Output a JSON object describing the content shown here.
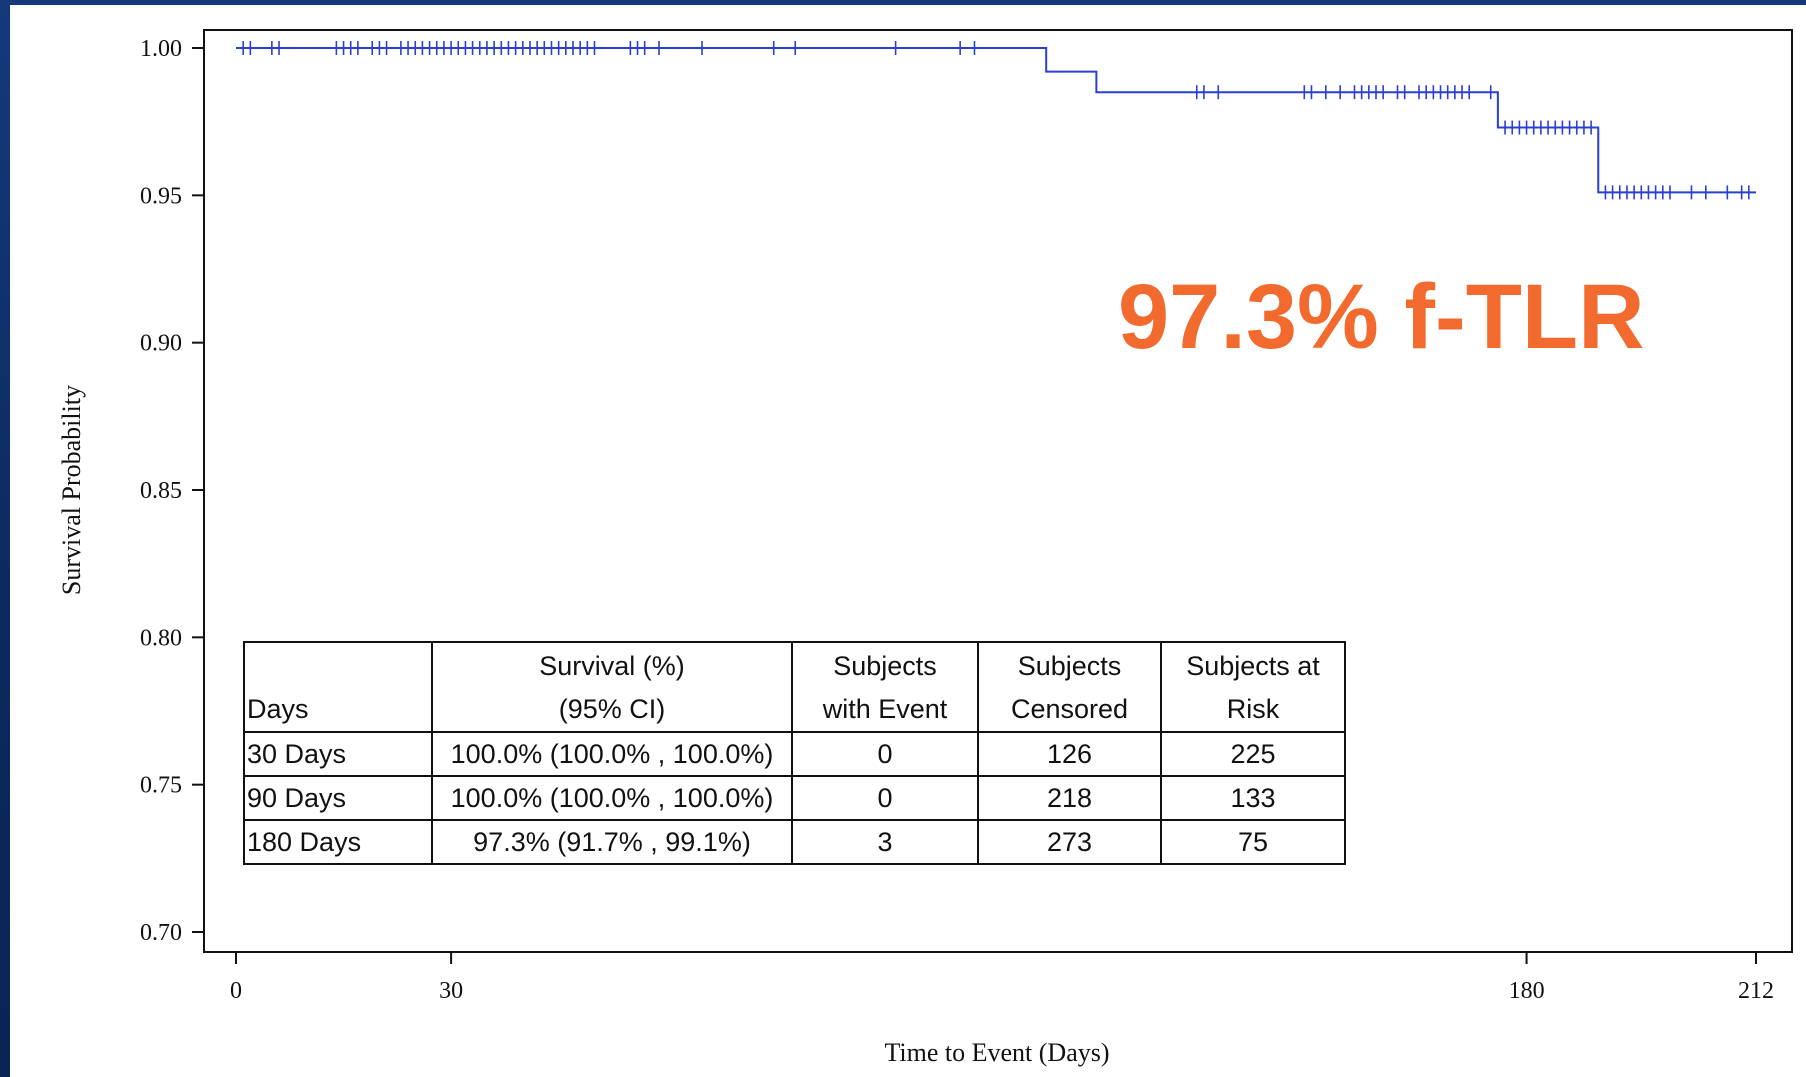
{
  "chart_data": {
    "type": "line",
    "subtype": "kaplan-meier",
    "title": "",
    "xlabel": "Time to Event (Days)",
    "ylabel": "Survival Probability",
    "xlim": [
      0,
      212
    ],
    "ylim": [
      0.7,
      1.0
    ],
    "x_ticks": [
      0,
      30,
      180,
      212
    ],
    "y_ticks": [
      "0.70",
      "0.75",
      "0.80",
      "0.85",
      "0.90",
      "0.95",
      "1.00"
    ],
    "series": [
      {
        "color": "#2a3fd6",
        "steps": [
          [
            0,
            1.0
          ],
          [
            113,
            0.992
          ],
          [
            120,
            0.985
          ],
          [
            176,
            0.973
          ],
          [
            190,
            0.951
          ],
          [
            212,
            0.951
          ]
        ],
        "censored": [
          {
            "x": 1,
            "y": 1.0
          },
          {
            "x": 2,
            "y": 1.0
          },
          {
            "x": 5,
            "y": 1.0
          },
          {
            "x": 6,
            "y": 1.0
          },
          {
            "x": 14,
            "y": 1.0
          },
          {
            "x": 15,
            "y": 1.0
          },
          {
            "x": 16,
            "y": 1.0
          },
          {
            "x": 17,
            "y": 1.0
          },
          {
            "x": 19,
            "y": 1.0
          },
          {
            "x": 20,
            "y": 1.0
          },
          {
            "x": 21,
            "y": 1.0
          },
          {
            "x": 23,
            "y": 1.0
          },
          {
            "x": 24,
            "y": 1.0
          },
          {
            "x": 25,
            "y": 1.0
          },
          {
            "x": 26,
            "y": 1.0
          },
          {
            "x": 27,
            "y": 1.0
          },
          {
            "x": 28,
            "y": 1.0
          },
          {
            "x": 29,
            "y": 1.0
          },
          {
            "x": 30,
            "y": 1.0
          },
          {
            "x": 31,
            "y": 1.0
          },
          {
            "x": 32,
            "y": 1.0
          },
          {
            "x": 33,
            "y": 1.0
          },
          {
            "x": 34,
            "y": 1.0
          },
          {
            "x": 35,
            "y": 1.0
          },
          {
            "x": 36,
            "y": 1.0
          },
          {
            "x": 37,
            "y": 1.0
          },
          {
            "x": 38,
            "y": 1.0
          },
          {
            "x": 39,
            "y": 1.0
          },
          {
            "x": 40,
            "y": 1.0
          },
          {
            "x": 41,
            "y": 1.0
          },
          {
            "x": 42,
            "y": 1.0
          },
          {
            "x": 43,
            "y": 1.0
          },
          {
            "x": 44,
            "y": 1.0
          },
          {
            "x": 45,
            "y": 1.0
          },
          {
            "x": 46,
            "y": 1.0
          },
          {
            "x": 47,
            "y": 1.0
          },
          {
            "x": 48,
            "y": 1.0
          },
          {
            "x": 49,
            "y": 1.0
          },
          {
            "x": 50,
            "y": 1.0
          },
          {
            "x": 55,
            "y": 1.0
          },
          {
            "x": 56,
            "y": 1.0
          },
          {
            "x": 57,
            "y": 1.0
          },
          {
            "x": 59,
            "y": 1.0
          },
          {
            "x": 65,
            "y": 1.0
          },
          {
            "x": 75,
            "y": 1.0
          },
          {
            "x": 78,
            "y": 1.0
          },
          {
            "x": 92,
            "y": 1.0
          },
          {
            "x": 101,
            "y": 1.0
          },
          {
            "x": 103,
            "y": 1.0
          },
          {
            "x": 134,
            "y": 0.985
          },
          {
            "x": 135,
            "y": 0.985
          },
          {
            "x": 137,
            "y": 0.985
          },
          {
            "x": 149,
            "y": 0.985
          },
          {
            "x": 150,
            "y": 0.985
          },
          {
            "x": 152,
            "y": 0.985
          },
          {
            "x": 154,
            "y": 0.985
          },
          {
            "x": 156,
            "y": 0.985
          },
          {
            "x": 157,
            "y": 0.985
          },
          {
            "x": 158,
            "y": 0.985
          },
          {
            "x": 159,
            "y": 0.985
          },
          {
            "x": 160,
            "y": 0.985
          },
          {
            "x": 162,
            "y": 0.985
          },
          {
            "x": 163,
            "y": 0.985
          },
          {
            "x": 165,
            "y": 0.985
          },
          {
            "x": 166,
            "y": 0.985
          },
          {
            "x": 167,
            "y": 0.985
          },
          {
            "x": 168,
            "y": 0.985
          },
          {
            "x": 169,
            "y": 0.985
          },
          {
            "x": 170,
            "y": 0.985
          },
          {
            "x": 171,
            "y": 0.985
          },
          {
            "x": 172,
            "y": 0.985
          },
          {
            "x": 175,
            "y": 0.985
          },
          {
            "x": 177,
            "y": 0.973
          },
          {
            "x": 178,
            "y": 0.973
          },
          {
            "x": 179,
            "y": 0.973
          },
          {
            "x": 180,
            "y": 0.973
          },
          {
            "x": 181,
            "y": 0.973
          },
          {
            "x": 182,
            "y": 0.973
          },
          {
            "x": 183,
            "y": 0.973
          },
          {
            "x": 184,
            "y": 0.973
          },
          {
            "x": 185,
            "y": 0.973
          },
          {
            "x": 186,
            "y": 0.973
          },
          {
            "x": 187,
            "y": 0.973
          },
          {
            "x": 188,
            "y": 0.973
          },
          {
            "x": 189,
            "y": 0.973
          },
          {
            "x": 191,
            "y": 0.951
          },
          {
            "x": 192,
            "y": 0.951
          },
          {
            "x": 193,
            "y": 0.951
          },
          {
            "x": 194,
            "y": 0.951
          },
          {
            "x": 195,
            "y": 0.951
          },
          {
            "x": 196,
            "y": 0.951
          },
          {
            "x": 197,
            "y": 0.951
          },
          {
            "x": 198,
            "y": 0.951
          },
          {
            "x": 199,
            "y": 0.951
          },
          {
            "x": 200,
            "y": 0.951
          },
          {
            "x": 203,
            "y": 0.951
          },
          {
            "x": 205,
            "y": 0.951
          },
          {
            "x": 208,
            "y": 0.951
          },
          {
            "x": 210,
            "y": 0.951
          },
          {
            "x": 211,
            "y": 0.951
          }
        ]
      }
    ],
    "annotation": "97.3% f-TLR",
    "table": {
      "headers": [
        [
          "Days"
        ],
        [
          "Survival (%)",
          "(95% CI)"
        ],
        [
          "Subjects",
          "with Event"
        ],
        [
          "Subjects",
          "Censored"
        ],
        [
          "Subjects at",
          "Risk"
        ]
      ],
      "rows": [
        [
          "30 Days",
          "100.0% (100.0% , 100.0%)",
          "0",
          "126",
          "225"
        ],
        [
          "90 Days",
          "100.0% (100.0% , 100.0%)",
          "0",
          "218",
          "133"
        ],
        [
          "180 Days",
          "97.3% (91.7% , 99.1%)",
          "3",
          "273",
          "75"
        ]
      ]
    },
    "grid": false,
    "legend": "none"
  }
}
